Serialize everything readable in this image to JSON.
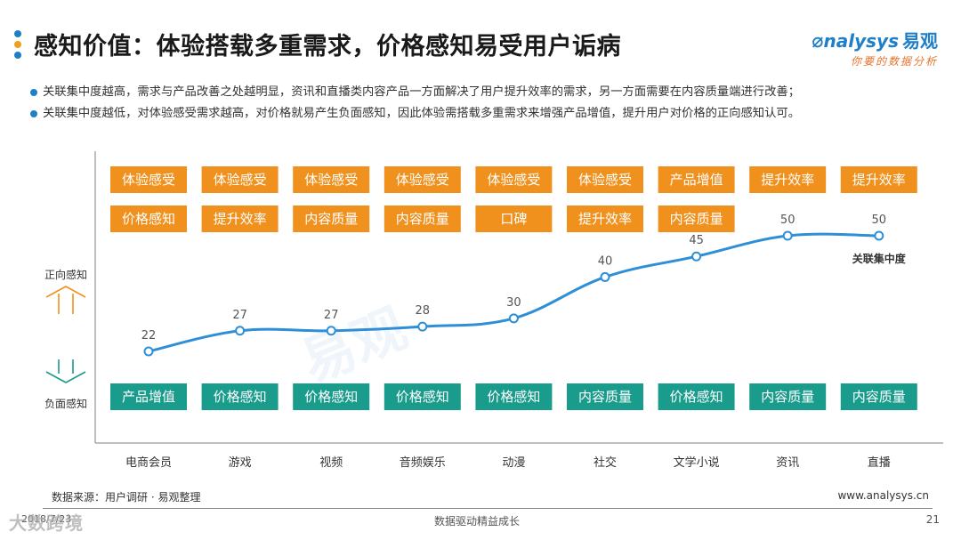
{
  "header": {
    "title": "感知价值：体验搭载多重需求，价格感知易受用户诟病",
    "dot_colors": [
      "#1e7fc8",
      "#f0a01e",
      "#1e7fc8"
    ],
    "logo_main": "nalysys",
    "logo_cn": "易观",
    "logo_sub": "你要的数据分析"
  },
  "bullets": [
    "关联集中度越高，需求与产品改善之处越明显，资讯和直播类内容产品一方面解决了用户提升效率的需求，另一方面需要在内容质量端进行改善；",
    "关联集中度越低，对体验感受需求越高，对价格就易产生负面感知，因此体验需搭载多重需求来增强产品增值，提升用户对价格的正向感知认可。"
  ],
  "chart_data": {
    "type": "line",
    "categories": [
      "电商会员",
      "游戏",
      "视频",
      "音频娱乐",
      "动漫",
      "社交",
      "文学小说",
      "资讯",
      "直播"
    ],
    "series": [
      {
        "name": "关联集中度",
        "values": [
          22,
          27,
          27,
          28,
          30,
          40,
          45,
          50,
          50
        ]
      }
    ],
    "ylim": [
      0,
      60
    ],
    "grid": false,
    "positive_label": "正向感知",
    "negative_label": "负面感知",
    "positive_row1": [
      "体验感受",
      "体验感受",
      "体验感受",
      "体验感受",
      "体验感受",
      "体验感受",
      "产品增值",
      "提升效率",
      "提升效率"
    ],
    "positive_row2": [
      "价格感知",
      "提升效率",
      "内容质量",
      "内容质量",
      "口碑",
      "提升效率",
      "内容质量",
      "",
      ""
    ],
    "negative_row": [
      "产品增值",
      "价格感知",
      "价格感知",
      "价格感知",
      "价格感知",
      "内容质量",
      "价格感知",
      "内容质量",
      "内容质量"
    ],
    "colors": {
      "positive": "#f0911e",
      "negative": "#1a9c8c",
      "line": "#2e8fd6",
      "axis": "#7f7f7f"
    }
  },
  "footer": {
    "source": "数据来源：用户调研 · 易观整理",
    "url": "www.analysys.cn",
    "date": "2018/7/23",
    "slogan": "数据驱动精益成长",
    "page": "21",
    "watermark": "大数跨境"
  }
}
